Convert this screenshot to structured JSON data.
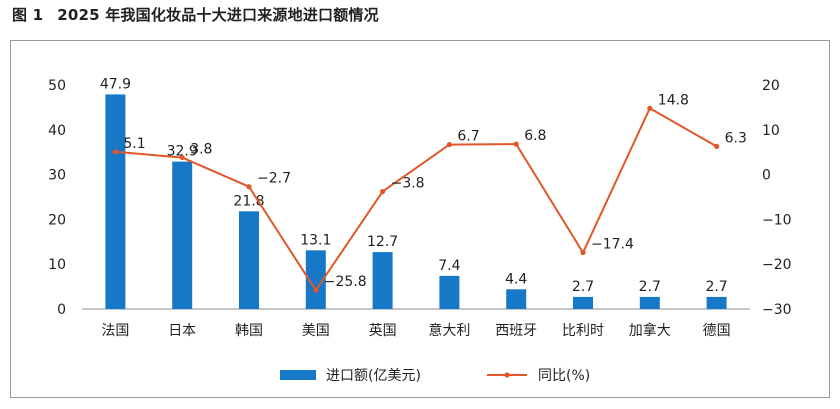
{
  "title": {
    "figure_no": "图 1",
    "text": "2025 年我国化妆品十大进口来源地进口额情况"
  },
  "colors": {
    "bar": "#1778c8",
    "line": "#e2572a",
    "axis": "#8c8c8c"
  },
  "chart_data": {
    "type": "bar",
    "title": "2025 年我国化妆品十大进口来源地进口额情况",
    "categories": [
      "法国",
      "日本",
      "韩国",
      "美国",
      "英国",
      "意大利",
      "西班牙",
      "比利时",
      "加拿大",
      "德国"
    ],
    "series": [
      {
        "name": "进口额(亿美元)",
        "type": "bar",
        "axis": "left",
        "values": [
          47.9,
          32.9,
          21.8,
          13.1,
          12.7,
          7.4,
          4.4,
          2.7,
          2.7,
          2.7
        ],
        "labels": [
          "47.9",
          "32.9",
          "21.8",
          "13.1",
          "12.7",
          "7.4",
          "4.4",
          "2.7",
          "2.7",
          "2.7"
        ]
      },
      {
        "name": "同比(%)",
        "type": "line",
        "axis": "right",
        "values": [
          5.1,
          3.8,
          -2.7,
          -25.8,
          -3.8,
          6.7,
          6.8,
          -17.4,
          14.8,
          6.3
        ],
        "labels": [
          "5.1",
          "3.8",
          "−2.7",
          "−25.8",
          "−3.8",
          "6.7",
          "6.8",
          "−17.4",
          "14.8",
          "6.3"
        ]
      }
    ],
    "left_axis": {
      "ylim": [
        0,
        50
      ],
      "ticks": [
        "0",
        "10",
        "20",
        "30",
        "40",
        "50"
      ]
    },
    "right_axis": {
      "ylim": [
        -30,
        20
      ],
      "ticks": [
        "−30",
        "−20",
        "−10",
        "0",
        "10",
        "20"
      ]
    },
    "grid": false,
    "legend": "bottom"
  }
}
